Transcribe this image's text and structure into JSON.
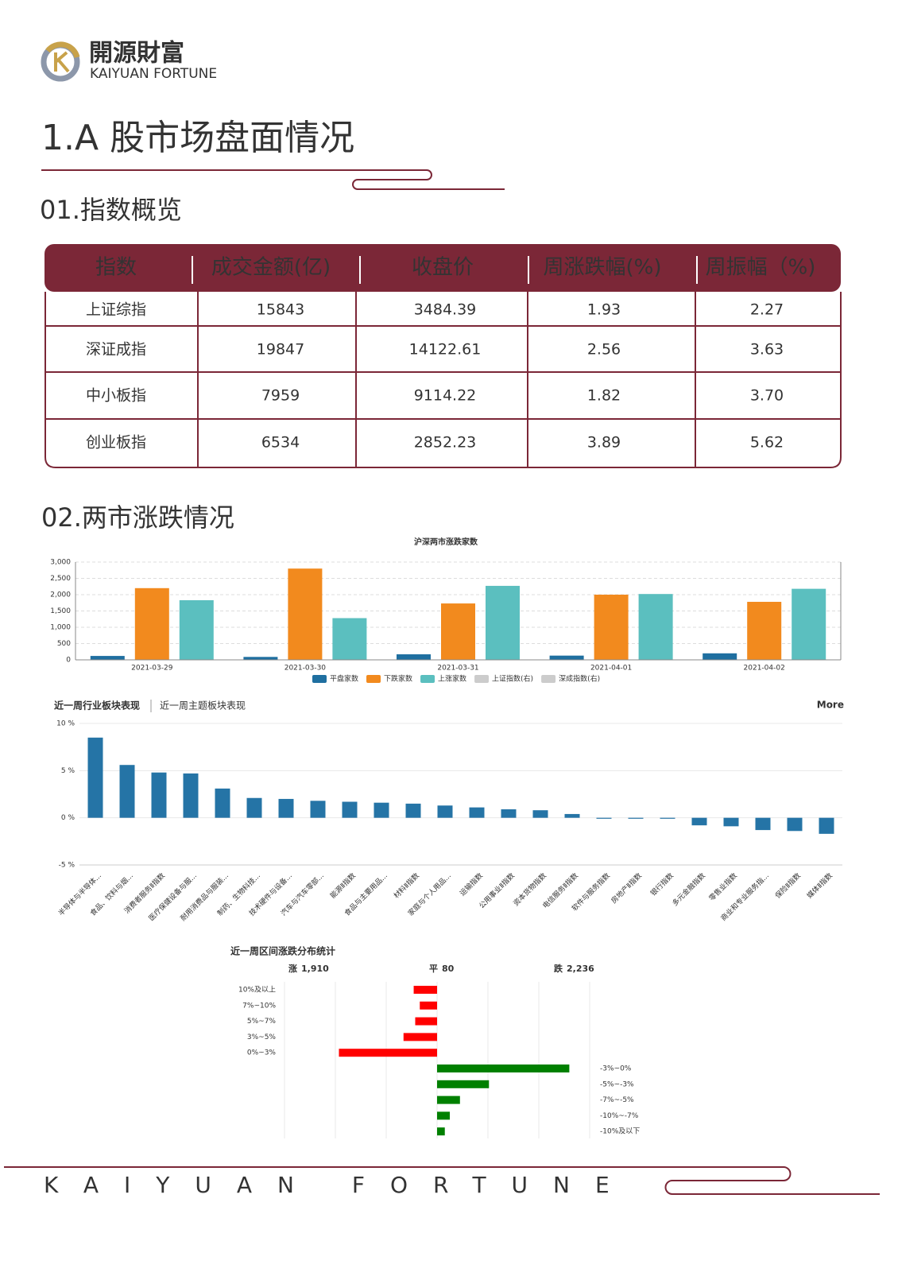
{
  "header": {
    "logo_cn": "開源財富",
    "logo_en": "KAIYUAN FORTUNE"
  },
  "section_title": "1.A 股市场盘面情况",
  "subtitle_1": "01.指数概览",
  "table": {
    "columns": [
      "指数",
      "成交金额(亿)",
      "收盘价",
      "周涨跌幅(%)",
      "周振幅（%)"
    ],
    "rows": [
      [
        "上证综指",
        "15843",
        "3484.39",
        "1.93",
        "2.27"
      ],
      [
        "深证成指",
        "19847",
        "14122.61",
        "2.56",
        "3.63"
      ],
      [
        "中小板指",
        "7959",
        "9114.22",
        "1.82",
        "3.70"
      ],
      [
        "创业板指",
        "6534",
        "2852.23",
        "3.89",
        "5.62"
      ]
    ]
  },
  "subtitle_2": "02.两市涨跌情况",
  "chart_data": [
    {
      "type": "bar",
      "title": "沪深两市涨跌家数",
      "categories": [
        "2021-03-29",
        "2021-03-30",
        "2021-03-31",
        "2021-04-01",
        "2021-04-02"
      ],
      "series": [
        {
          "name": "平盘家数",
          "color": "#1f6fa0",
          "values": [
            120,
            90,
            170,
            130,
            200
          ]
        },
        {
          "name": "下跌家数",
          "color": "#f28a1e",
          "values": [
            2200,
            2800,
            1730,
            2000,
            1780
          ]
        },
        {
          "name": "上涨家数",
          "color": "#5bbfbf",
          "values": [
            1830,
            1280,
            2270,
            2020,
            2180
          ]
        }
      ],
      "legend_disabled": [
        "上证指数(右)",
        "深成指数(右)"
      ],
      "ylim": [
        0,
        3000
      ],
      "yticks": [
        0,
        500,
        {
          "value": 1000,
          "label": "1,000"
        },
        {
          "value": 1500,
          "label": "1,500"
        },
        {
          "value": 2000,
          "label": "2,000"
        },
        {
          "value": 2500,
          "label": "2,500"
        },
        {
          "value": 3000,
          "label": "3,000"
        }
      ],
      "grid": true
    },
    {
      "type": "bar",
      "tabs": [
        "近一周行业板块表现",
        "近一周主题板块表现"
      ],
      "more": "More",
      "categories": [
        "半导体与半导体...",
        "食品、饮料与烟...",
        "消费者服务Ⅱ指数",
        "医疗保健设备与服...",
        "耐用消费品与服装...",
        "制药、生物科技...",
        "技术硬件与设备...",
        "汽车与汽车零部...",
        "能源Ⅱ指数",
        "食品与主要用品...",
        "材料Ⅱ指数",
        "家庭与个人用品...",
        "运输指数",
        "公用事业Ⅱ指数",
        "资本货物指数",
        "电信服务Ⅱ指数",
        "软件与服务指数",
        "房地产Ⅱ指数",
        "银行指数",
        "多元金融指数",
        "零售业指数",
        "商业和专业服务指...",
        "保险Ⅱ指数",
        "媒体Ⅱ指数"
      ],
      "values": [
        8.5,
        5.6,
        4.8,
        4.7,
        3.1,
        2.1,
        2.0,
        1.8,
        1.7,
        1.6,
        1.5,
        1.3,
        1.1,
        0.9,
        0.8,
        0.4,
        -0.1,
        -0.1,
        -0.1,
        -0.8,
        -0.9,
        -1.3,
        -1.4,
        -1.7
      ],
      "color": "#2574a6",
      "ylim": [
        -5,
        10
      ],
      "yticks": [
        {
          "value": -5,
          "label": "-5 %"
        },
        {
          "value": 0,
          "label": "0 %"
        },
        {
          "value": 5,
          "label": "5 %"
        },
        {
          "value": 10,
          "label": "10 %"
        }
      ],
      "grid": true
    },
    {
      "type": "hbar",
      "title": "近一周区间涨跌分布统计",
      "summary": [
        {
          "name": "涨",
          "label": "1,910",
          "color": "#e00000"
        },
        {
          "name": "平",
          "label": "80",
          "color": "#444444"
        },
        {
          "name": "跌",
          "label": "2,236",
          "color": "#0a8a0a"
        }
      ],
      "series": [
        {
          "color": "#ff0000",
          "direction": "left",
          "categories": [
            "10%及以上",
            "7%~10%",
            "5%~7%",
            "3%~5%",
            "0%~3%"
          ],
          "values": [
            230,
            170,
            215,
            330,
            965
          ]
        },
        {
          "color": "#008000",
          "direction": "right",
          "categories": [
            "-3%~0%",
            "-5%~-3%",
            "-7%~-5%",
            "-10%~-7%",
            "-10%及以下"
          ],
          "values": [
            1300,
            510,
            225,
            125,
            76
          ]
        }
      ],
      "xlim": [
        -1500,
        1500
      ],
      "xgrid": [
        -1500,
        -1000,
        -500,
        0,
        500,
        1000,
        1500
      ]
    }
  ],
  "footer": "KAIYUAN FORTUNE"
}
